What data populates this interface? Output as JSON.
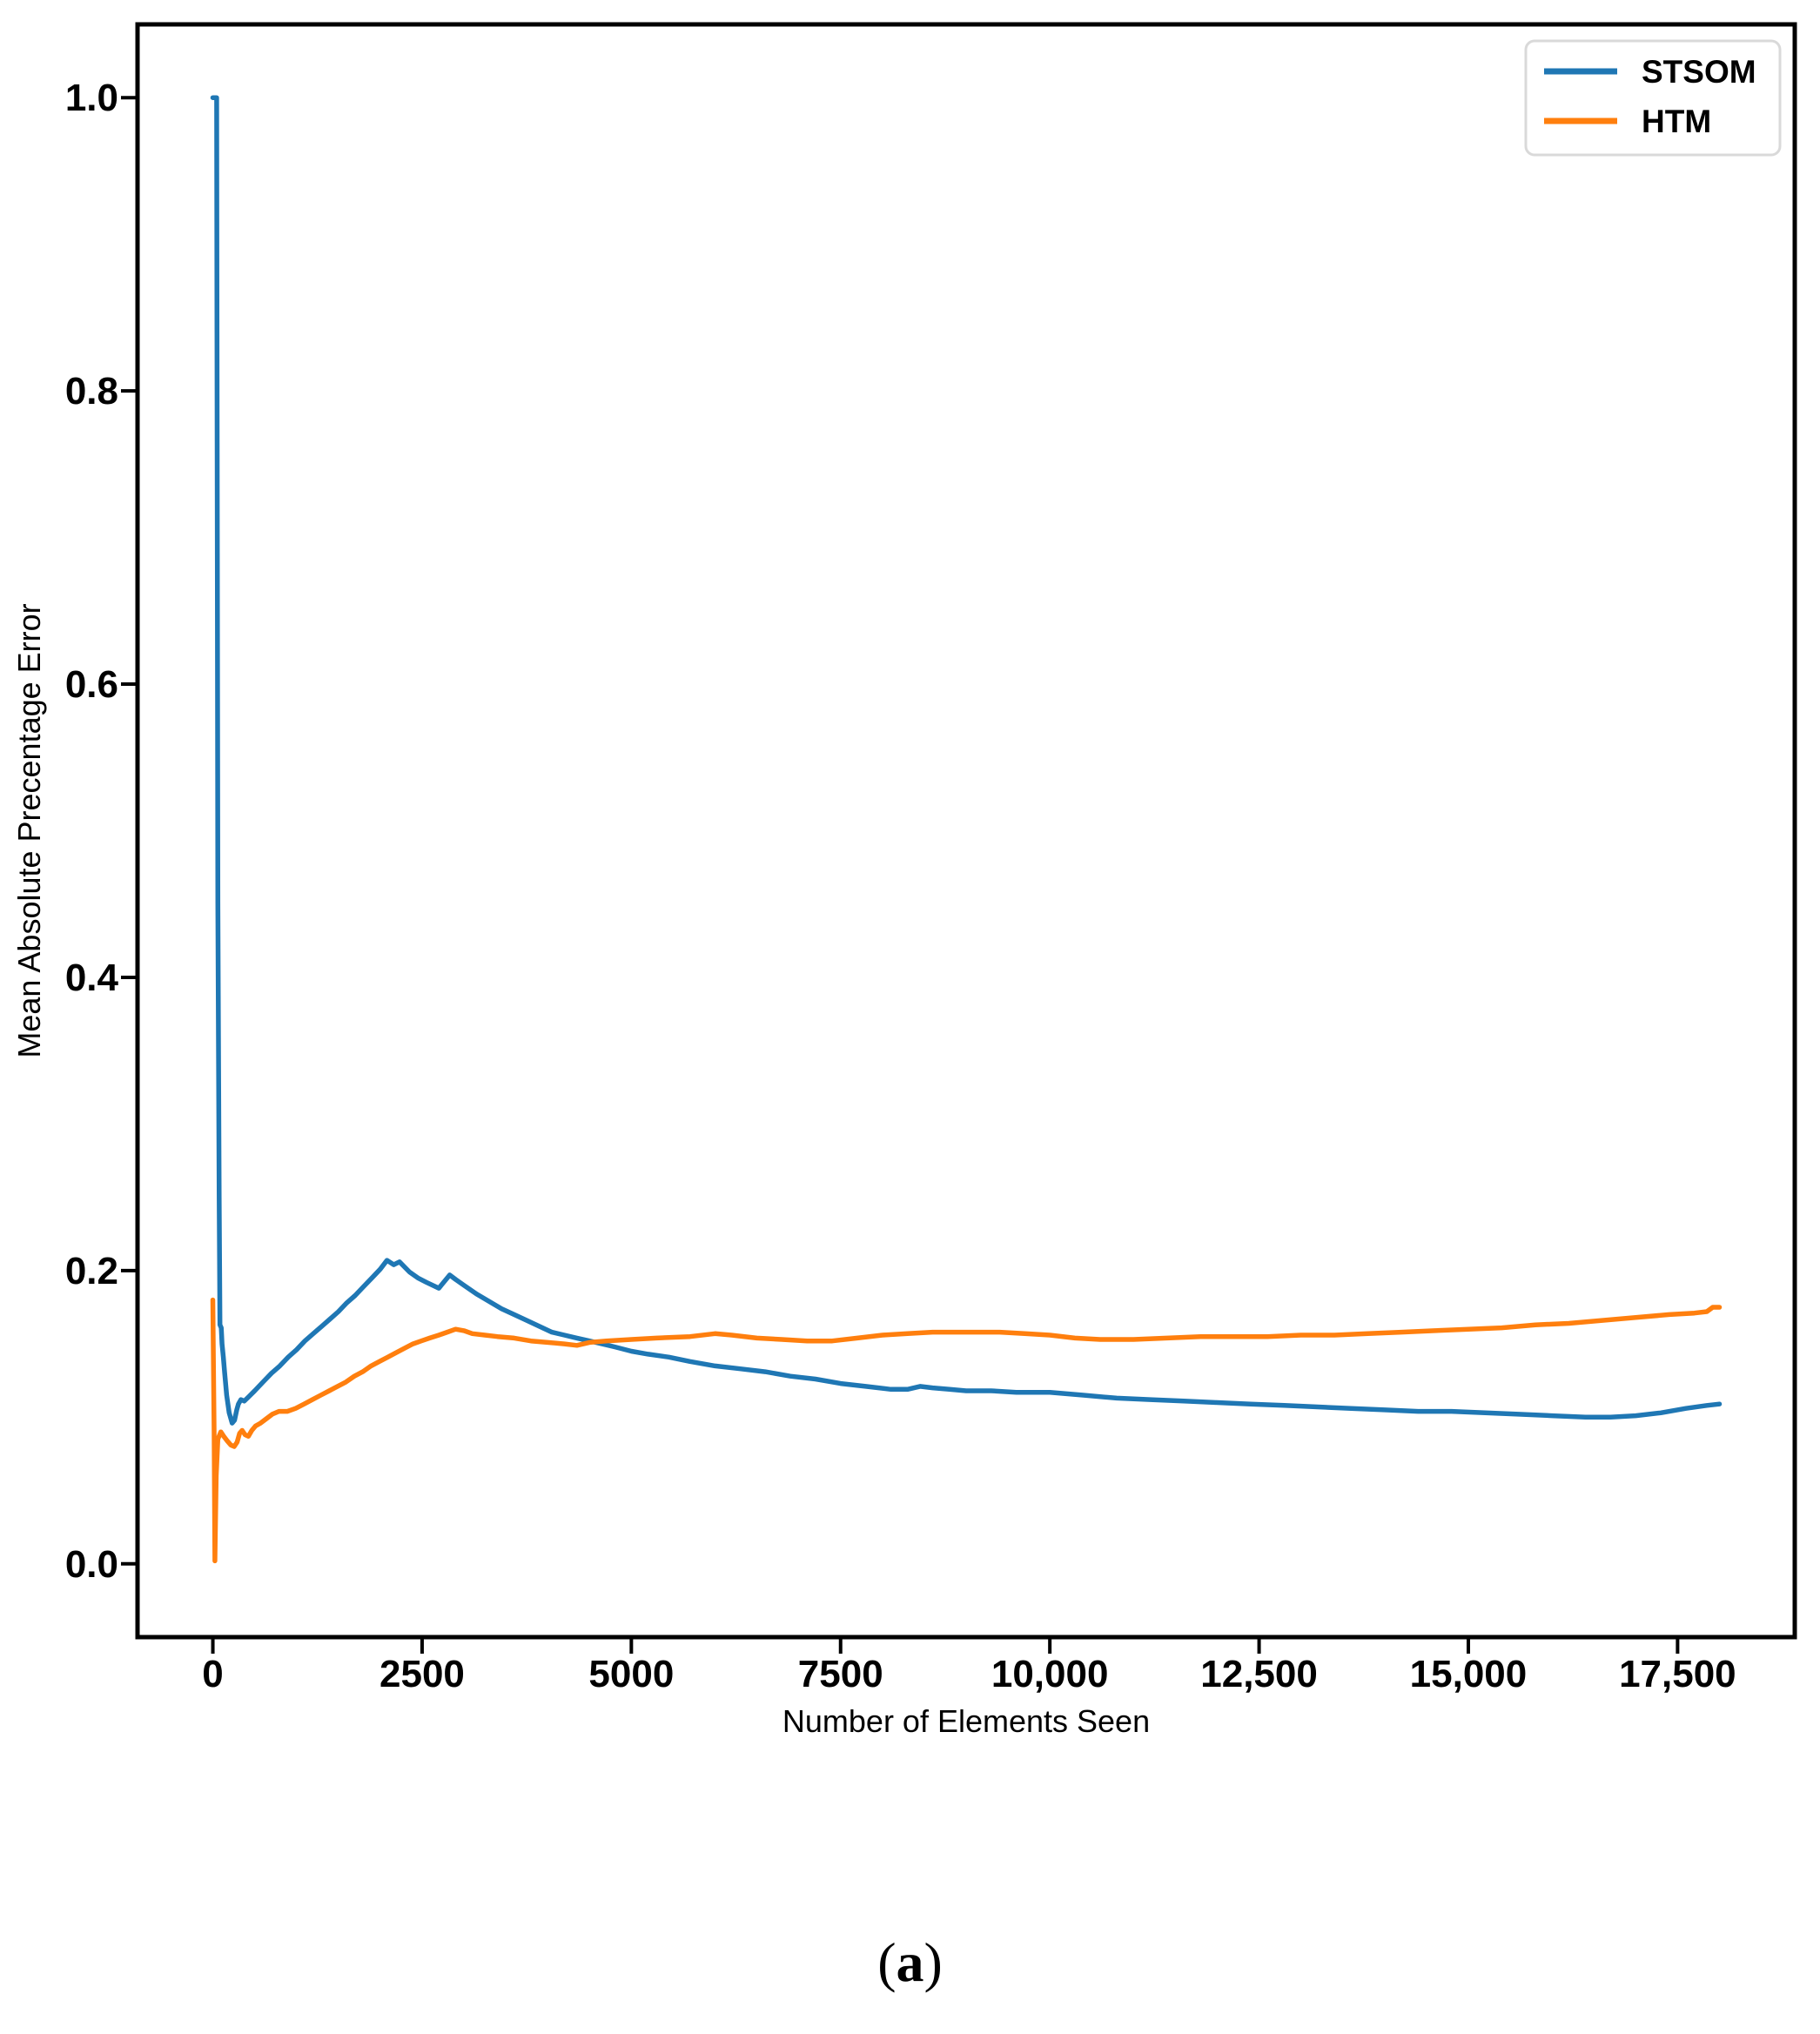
{
  "caption": {
    "open": "(",
    "letter": "a",
    "close": ")"
  },
  "chart_data": {
    "type": "line",
    "title": "",
    "grid": false,
    "colors": {
      "stsom": "#1f77b4",
      "htm": "#ff7f0e",
      "axis": "#000000",
      "legend_border": "#d9d9d9",
      "background": "#ffffff"
    },
    "x_axis": {
      "label": "Number of Elements Seen",
      "range": [
        -900,
        18900
      ],
      "tick_values": [
        0,
        2500,
        5000,
        7500,
        10000,
        12500,
        15000,
        17500
      ],
      "tick_labels": [
        "0",
        "2500",
        "5000",
        "7500",
        "10,000",
        "12,500",
        "15,000",
        "17,500"
      ]
    },
    "y_axis": {
      "label": "Mean Absolute Precentage Error",
      "range": [
        -0.05,
        1.05
      ],
      "tick_values": [
        0.0,
        0.2,
        0.4,
        0.6,
        0.8,
        1.0
      ],
      "tick_labels": [
        "0.0",
        "0.2",
        "0.4",
        "0.6",
        "0.8",
        "1.0"
      ]
    },
    "legend": {
      "position": "upper right",
      "entries": [
        {
          "label": "STSOM",
          "color": "#1f77b4"
        },
        {
          "label": "HTM",
          "color": "#ff7f0e"
        }
      ]
    },
    "series": [
      {
        "name": "STSOM",
        "color": "#1f77b4",
        "points": [
          [
            0,
            1.0
          ],
          [
            45,
            1.0
          ],
          [
            60,
            0.45
          ],
          [
            75,
            0.25
          ],
          [
            85,
            0.163
          ],
          [
            100,
            0.161
          ],
          [
            110,
            0.15
          ],
          [
            125,
            0.141
          ],
          [
            140,
            0.131
          ],
          [
            165,
            0.115
          ],
          [
            195,
            0.103
          ],
          [
            230,
            0.096
          ],
          [
            260,
            0.098
          ],
          [
            285,
            0.105
          ],
          [
            305,
            0.109
          ],
          [
            335,
            0.112
          ],
          [
            375,
            0.111
          ],
          [
            430,
            0.114
          ],
          [
            500,
            0.118
          ],
          [
            600,
            0.124
          ],
          [
            700,
            0.13
          ],
          [
            800,
            0.135
          ],
          [
            900,
            0.141
          ],
          [
            1000,
            0.146
          ],
          [
            1100,
            0.152
          ],
          [
            1200,
            0.157
          ],
          [
            1300,
            0.162
          ],
          [
            1400,
            0.167
          ],
          [
            1500,
            0.172
          ],
          [
            1600,
            0.178
          ],
          [
            1700,
            0.183
          ],
          [
            1800,
            0.189
          ],
          [
            1900,
            0.195
          ],
          [
            2000,
            0.201
          ],
          [
            2080,
            0.207
          ],
          [
            2160,
            0.204
          ],
          [
            2230,
            0.206
          ],
          [
            2350,
            0.199
          ],
          [
            2450,
            0.195
          ],
          [
            2550,
            0.192
          ],
          [
            2700,
            0.188
          ],
          [
            2830,
            0.197
          ],
          [
            2900,
            0.194
          ],
          [
            3000,
            0.19
          ],
          [
            3150,
            0.184
          ],
          [
            3300,
            0.179
          ],
          [
            3450,
            0.174
          ],
          [
            3600,
            0.17
          ],
          [
            3750,
            0.166
          ],
          [
            3900,
            0.162
          ],
          [
            4050,
            0.158
          ],
          [
            4200,
            0.156
          ],
          [
            4350,
            0.154
          ],
          [
            4500,
            0.152
          ],
          [
            4650,
            0.15
          ],
          [
            4800,
            0.148
          ],
          [
            5000,
            0.145
          ],
          [
            5200,
            0.143
          ],
          [
            5450,
            0.141
          ],
          [
            5700,
            0.138
          ],
          [
            6000,
            0.135
          ],
          [
            6300,
            0.133
          ],
          [
            6600,
            0.131
          ],
          [
            6900,
            0.128
          ],
          [
            7200,
            0.126
          ],
          [
            7500,
            0.123
          ],
          [
            7800,
            0.121
          ],
          [
            8100,
            0.119
          ],
          [
            8300,
            0.119
          ],
          [
            8450,
            0.121
          ],
          [
            8600,
            0.12
          ],
          [
            8800,
            0.119
          ],
          [
            9000,
            0.118
          ],
          [
            9300,
            0.118
          ],
          [
            9600,
            0.117
          ],
          [
            10000,
            0.117
          ],
          [
            10400,
            0.115
          ],
          [
            10800,
            0.113
          ],
          [
            11200,
            0.112
          ],
          [
            11600,
            0.111
          ],
          [
            12000,
            0.11
          ],
          [
            12400,
            0.109
          ],
          [
            12800,
            0.108
          ],
          [
            13200,
            0.107
          ],
          [
            13600,
            0.106
          ],
          [
            14000,
            0.105
          ],
          [
            14400,
            0.104
          ],
          [
            14800,
            0.104
          ],
          [
            15200,
            0.103
          ],
          [
            15600,
            0.102
          ],
          [
            16000,
            0.101
          ],
          [
            16400,
            0.1
          ],
          [
            16700,
            0.1
          ],
          [
            17000,
            0.101
          ],
          [
            17300,
            0.103
          ],
          [
            17600,
            0.106
          ],
          [
            17850,
            0.108
          ],
          [
            18000,
            0.109
          ]
        ]
      },
      {
        "name": "HTM",
        "color": "#ff7f0e",
        "points": [
          [
            0,
            0.18
          ],
          [
            15,
            0.09
          ],
          [
            25,
            0.002
          ],
          [
            40,
            0.06
          ],
          [
            60,
            0.085
          ],
          [
            95,
            0.09
          ],
          [
            130,
            0.087
          ],
          [
            170,
            0.084
          ],
          [
            215,
            0.081
          ],
          [
            255,
            0.08
          ],
          [
            290,
            0.083
          ],
          [
            320,
            0.089
          ],
          [
            350,
            0.091
          ],
          [
            385,
            0.088
          ],
          [
            425,
            0.087
          ],
          [
            465,
            0.091
          ],
          [
            510,
            0.094
          ],
          [
            570,
            0.096
          ],
          [
            640,
            0.099
          ],
          [
            710,
            0.102
          ],
          [
            790,
            0.104
          ],
          [
            890,
            0.104
          ],
          [
            990,
            0.106
          ],
          [
            1090,
            0.109
          ],
          [
            1190,
            0.112
          ],
          [
            1290,
            0.115
          ],
          [
            1390,
            0.118
          ],
          [
            1490,
            0.121
          ],
          [
            1590,
            0.124
          ],
          [
            1690,
            0.128
          ],
          [
            1790,
            0.131
          ],
          [
            1890,
            0.135
          ],
          [
            1990,
            0.138
          ],
          [
            2090,
            0.141
          ],
          [
            2190,
            0.144
          ],
          [
            2290,
            0.147
          ],
          [
            2390,
            0.15
          ],
          [
            2490,
            0.152
          ],
          [
            2590,
            0.154
          ],
          [
            2700,
            0.156
          ],
          [
            2800,
            0.158
          ],
          [
            2900,
            0.16
          ],
          [
            3000,
            0.159
          ],
          [
            3100,
            0.157
          ],
          [
            3250,
            0.156
          ],
          [
            3400,
            0.155
          ],
          [
            3600,
            0.154
          ],
          [
            3800,
            0.152
          ],
          [
            4000,
            0.151
          ],
          [
            4200,
            0.15
          ],
          [
            4350,
            0.149
          ],
          [
            4500,
            0.151
          ],
          [
            4700,
            0.152
          ],
          [
            5000,
            0.153
          ],
          [
            5300,
            0.154
          ],
          [
            5700,
            0.155
          ],
          [
            6000,
            0.157
          ],
          [
            6200,
            0.156
          ],
          [
            6500,
            0.154
          ],
          [
            6800,
            0.153
          ],
          [
            7100,
            0.152
          ],
          [
            7400,
            0.152
          ],
          [
            7700,
            0.154
          ],
          [
            8000,
            0.156
          ],
          [
            8300,
            0.157
          ],
          [
            8600,
            0.158
          ],
          [
            9000,
            0.158
          ],
          [
            9400,
            0.158
          ],
          [
            9700,
            0.157
          ],
          [
            10000,
            0.156
          ],
          [
            10300,
            0.154
          ],
          [
            10600,
            0.153
          ],
          [
            11000,
            0.153
          ],
          [
            11400,
            0.154
          ],
          [
            11800,
            0.155
          ],
          [
            12200,
            0.155
          ],
          [
            12600,
            0.155
          ],
          [
            13000,
            0.156
          ],
          [
            13400,
            0.156
          ],
          [
            13800,
            0.157
          ],
          [
            14200,
            0.158
          ],
          [
            14600,
            0.159
          ],
          [
            15000,
            0.16
          ],
          [
            15400,
            0.161
          ],
          [
            15800,
            0.163
          ],
          [
            16200,
            0.164
          ],
          [
            16600,
            0.166
          ],
          [
            17000,
            0.168
          ],
          [
            17400,
            0.17
          ],
          [
            17700,
            0.171
          ],
          [
            17850,
            0.172
          ],
          [
            17920,
            0.175
          ],
          [
            18000,
            0.175
          ]
        ]
      }
    ]
  }
}
